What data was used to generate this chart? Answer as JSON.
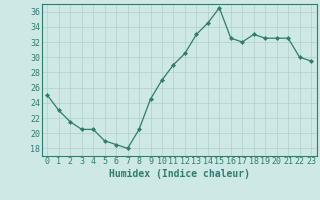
{
  "x": [
    0,
    1,
    2,
    3,
    4,
    5,
    6,
    7,
    8,
    9,
    10,
    11,
    12,
    13,
    14,
    15,
    16,
    17,
    18,
    19,
    20,
    21,
    22,
    23
  ],
  "y": [
    25,
    23,
    21.5,
    20.5,
    20.5,
    19,
    18.5,
    18,
    20.5,
    24.5,
    27,
    29,
    30.5,
    33,
    34.5,
    36.5,
    32.5,
    32,
    33,
    32.5,
    32.5,
    32.5,
    30,
    29.5
  ],
  "line_color": "#2e7d6e",
  "marker": "D",
  "marker_size": 2,
  "bg_color": "#cde8e5",
  "grid_color": "#b0d0cc",
  "xlabel": "Humidex (Indice chaleur)",
  "ylim": [
    17,
    37
  ],
  "xlim": [
    -0.5,
    23.5
  ],
  "yticks": [
    18,
    20,
    22,
    24,
    26,
    28,
    30,
    32,
    34,
    36
  ],
  "xticks": [
    0,
    1,
    2,
    3,
    4,
    5,
    6,
    7,
    8,
    9,
    10,
    11,
    12,
    13,
    14,
    15,
    16,
    17,
    18,
    19,
    20,
    21,
    22,
    23
  ],
  "axis_color": "#2e7d6e",
  "font_color": "#2e7d6e",
  "tick_fontsize": 6,
  "xlabel_fontsize": 7
}
